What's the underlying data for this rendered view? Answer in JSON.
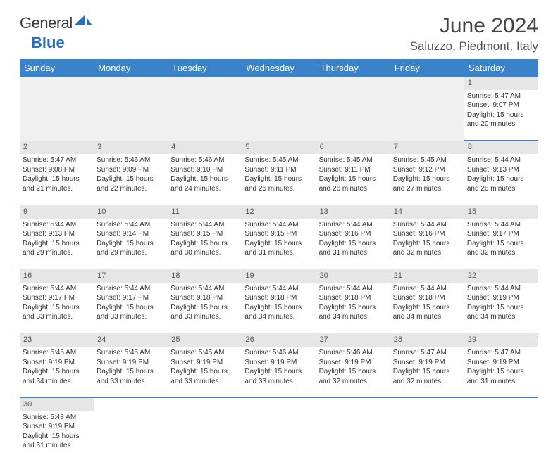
{
  "logo": {
    "textA": "General",
    "textB": "Blue"
  },
  "title": "June 2024",
  "location": "Saluzzo, Piedmont, Italy",
  "colors": {
    "headerBg": "#3a83c8",
    "dayNumBg": "#e6e6e6",
    "ruleColor": "#3a83c8"
  },
  "weekdays": [
    "Sunday",
    "Monday",
    "Tuesday",
    "Wednesday",
    "Thursday",
    "Friday",
    "Saturday"
  ],
  "weeks": [
    [
      null,
      null,
      null,
      null,
      null,
      null,
      {
        "n": "1",
        "sr": "Sunrise: 5:47 AM",
        "ss": "Sunset: 9:07 PM",
        "dl1": "Daylight: 15 hours",
        "dl2": "and 20 minutes."
      }
    ],
    [
      {
        "n": "2",
        "sr": "Sunrise: 5:47 AM",
        "ss": "Sunset: 9:08 PM",
        "dl1": "Daylight: 15 hours",
        "dl2": "and 21 minutes."
      },
      {
        "n": "3",
        "sr": "Sunrise: 5:46 AM",
        "ss": "Sunset: 9:09 PM",
        "dl1": "Daylight: 15 hours",
        "dl2": "and 22 minutes."
      },
      {
        "n": "4",
        "sr": "Sunrise: 5:46 AM",
        "ss": "Sunset: 9:10 PM",
        "dl1": "Daylight: 15 hours",
        "dl2": "and 24 minutes."
      },
      {
        "n": "5",
        "sr": "Sunrise: 5:45 AM",
        "ss": "Sunset: 9:11 PM",
        "dl1": "Daylight: 15 hours",
        "dl2": "and 25 minutes."
      },
      {
        "n": "6",
        "sr": "Sunrise: 5:45 AM",
        "ss": "Sunset: 9:11 PM",
        "dl1": "Daylight: 15 hours",
        "dl2": "and 26 minutes."
      },
      {
        "n": "7",
        "sr": "Sunrise: 5:45 AM",
        "ss": "Sunset: 9:12 PM",
        "dl1": "Daylight: 15 hours",
        "dl2": "and 27 minutes."
      },
      {
        "n": "8",
        "sr": "Sunrise: 5:44 AM",
        "ss": "Sunset: 9:13 PM",
        "dl1": "Daylight: 15 hours",
        "dl2": "and 28 minutes."
      }
    ],
    [
      {
        "n": "9",
        "sr": "Sunrise: 5:44 AM",
        "ss": "Sunset: 9:13 PM",
        "dl1": "Daylight: 15 hours",
        "dl2": "and 29 minutes."
      },
      {
        "n": "10",
        "sr": "Sunrise: 5:44 AM",
        "ss": "Sunset: 9:14 PM",
        "dl1": "Daylight: 15 hours",
        "dl2": "and 29 minutes."
      },
      {
        "n": "11",
        "sr": "Sunrise: 5:44 AM",
        "ss": "Sunset: 9:15 PM",
        "dl1": "Daylight: 15 hours",
        "dl2": "and 30 minutes."
      },
      {
        "n": "12",
        "sr": "Sunrise: 5:44 AM",
        "ss": "Sunset: 9:15 PM",
        "dl1": "Daylight: 15 hours",
        "dl2": "and 31 minutes."
      },
      {
        "n": "13",
        "sr": "Sunrise: 5:44 AM",
        "ss": "Sunset: 9:16 PM",
        "dl1": "Daylight: 15 hours",
        "dl2": "and 31 minutes."
      },
      {
        "n": "14",
        "sr": "Sunrise: 5:44 AM",
        "ss": "Sunset: 9:16 PM",
        "dl1": "Daylight: 15 hours",
        "dl2": "and 32 minutes."
      },
      {
        "n": "15",
        "sr": "Sunrise: 5:44 AM",
        "ss": "Sunset: 9:17 PM",
        "dl1": "Daylight: 15 hours",
        "dl2": "and 32 minutes."
      }
    ],
    [
      {
        "n": "16",
        "sr": "Sunrise: 5:44 AM",
        "ss": "Sunset: 9:17 PM",
        "dl1": "Daylight: 15 hours",
        "dl2": "and 33 minutes."
      },
      {
        "n": "17",
        "sr": "Sunrise: 5:44 AM",
        "ss": "Sunset: 9:17 PM",
        "dl1": "Daylight: 15 hours",
        "dl2": "and 33 minutes."
      },
      {
        "n": "18",
        "sr": "Sunrise: 5:44 AM",
        "ss": "Sunset: 9:18 PM",
        "dl1": "Daylight: 15 hours",
        "dl2": "and 33 minutes."
      },
      {
        "n": "19",
        "sr": "Sunrise: 5:44 AM",
        "ss": "Sunset: 9:18 PM",
        "dl1": "Daylight: 15 hours",
        "dl2": "and 34 minutes."
      },
      {
        "n": "20",
        "sr": "Sunrise: 5:44 AM",
        "ss": "Sunset: 9:18 PM",
        "dl1": "Daylight: 15 hours",
        "dl2": "and 34 minutes."
      },
      {
        "n": "21",
        "sr": "Sunrise: 5:44 AM",
        "ss": "Sunset: 9:18 PM",
        "dl1": "Daylight: 15 hours",
        "dl2": "and 34 minutes."
      },
      {
        "n": "22",
        "sr": "Sunrise: 5:44 AM",
        "ss": "Sunset: 9:19 PM",
        "dl1": "Daylight: 15 hours",
        "dl2": "and 34 minutes."
      }
    ],
    [
      {
        "n": "23",
        "sr": "Sunrise: 5:45 AM",
        "ss": "Sunset: 9:19 PM",
        "dl1": "Daylight: 15 hours",
        "dl2": "and 34 minutes."
      },
      {
        "n": "24",
        "sr": "Sunrise: 5:45 AM",
        "ss": "Sunset: 9:19 PM",
        "dl1": "Daylight: 15 hours",
        "dl2": "and 33 minutes."
      },
      {
        "n": "25",
        "sr": "Sunrise: 5:45 AM",
        "ss": "Sunset: 9:19 PM",
        "dl1": "Daylight: 15 hours",
        "dl2": "and 33 minutes."
      },
      {
        "n": "26",
        "sr": "Sunrise: 5:46 AM",
        "ss": "Sunset: 9:19 PM",
        "dl1": "Daylight: 15 hours",
        "dl2": "and 33 minutes."
      },
      {
        "n": "27",
        "sr": "Sunrise: 5:46 AM",
        "ss": "Sunset: 9:19 PM",
        "dl1": "Daylight: 15 hours",
        "dl2": "and 32 minutes."
      },
      {
        "n": "28",
        "sr": "Sunrise: 5:47 AM",
        "ss": "Sunset: 9:19 PM",
        "dl1": "Daylight: 15 hours",
        "dl2": "and 32 minutes."
      },
      {
        "n": "29",
        "sr": "Sunrise: 5:47 AM",
        "ss": "Sunset: 9:19 PM",
        "dl1": "Daylight: 15 hours",
        "dl2": "and 31 minutes."
      }
    ],
    [
      {
        "n": "30",
        "sr": "Sunrise: 5:48 AM",
        "ss": "Sunset: 9:19 PM",
        "dl1": "Daylight: 15 hours",
        "dl2": "and 31 minutes."
      },
      null,
      null,
      null,
      null,
      null,
      null
    ]
  ]
}
